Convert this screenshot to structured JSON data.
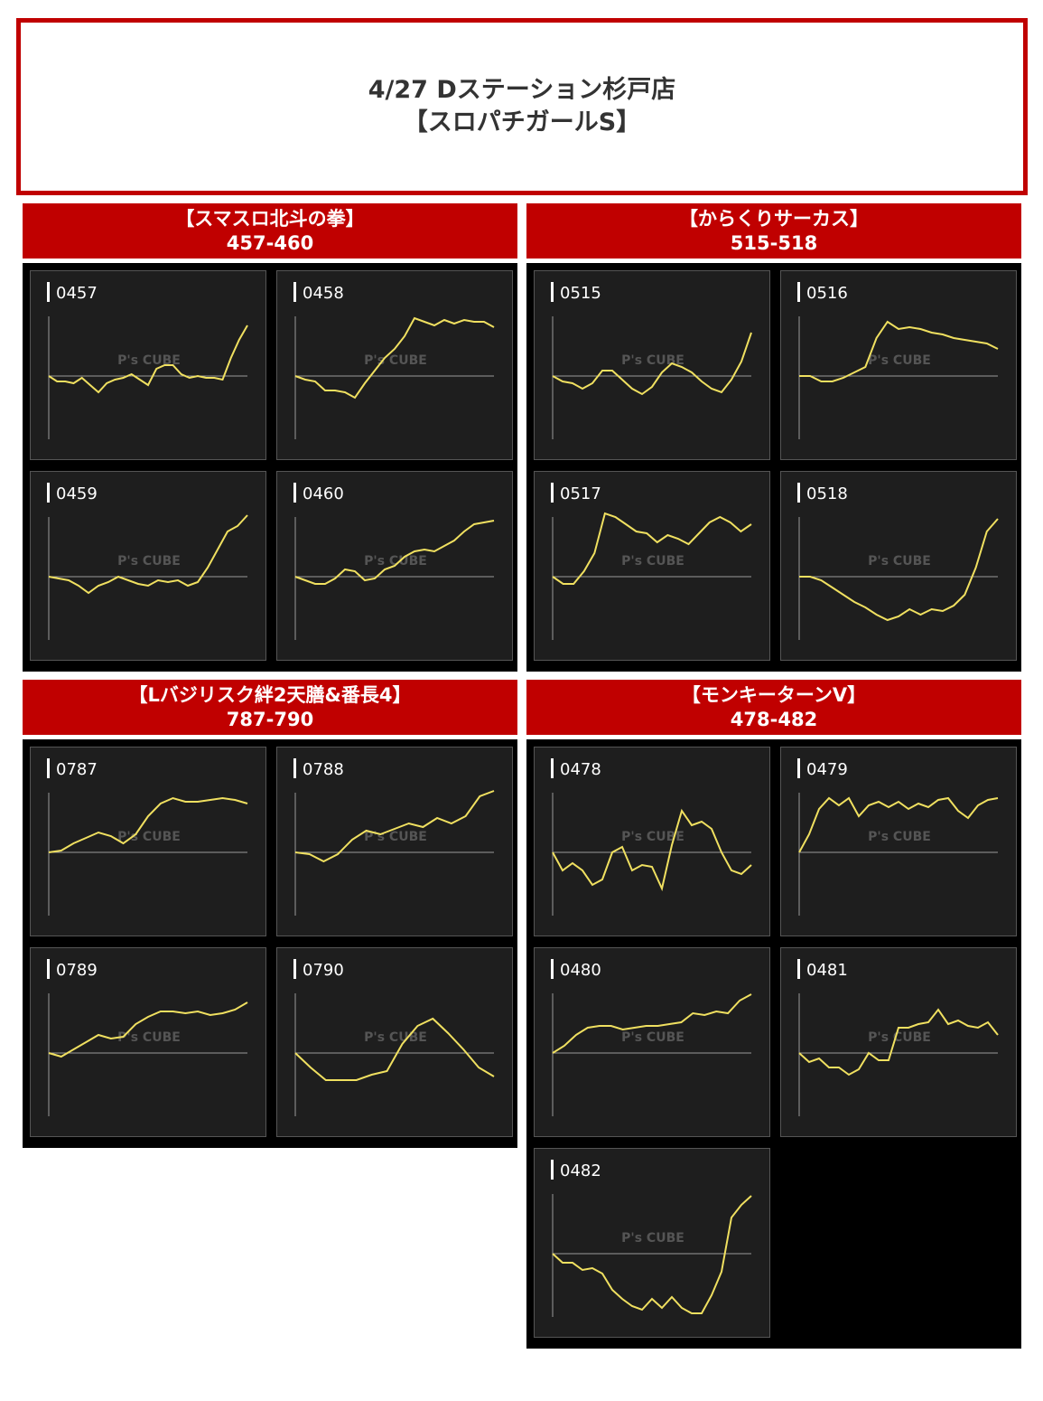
{
  "header": {
    "date_store": "4/27 Dステーション杉戸店",
    "event": "【スロパチガールS】"
  },
  "watermark": "P's CUBE",
  "groups": [
    {
      "title": "【スマスロ北斗の拳】",
      "range": "457-460",
      "machines": [
        {
          "id": "0457",
          "values": [
            0,
            -6,
            -6,
            -8,
            -2,
            -10,
            -18,
            -8,
            -4,
            -2,
            2,
            -4,
            -10,
            8,
            12,
            12,
            2,
            -2,
            0,
            -2,
            -2,
            -4,
            20,
            40,
            56
          ]
        },
        {
          "id": "0458",
          "values": [
            0,
            -4,
            -6,
            -16,
            -16,
            -18,
            -24,
            -8,
            6,
            20,
            30,
            44,
            64,
            60,
            56,
            62,
            58,
            62,
            60,
            60,
            54
          ]
        },
        {
          "id": "0459",
          "values": [
            0,
            -2,
            -4,
            -10,
            -18,
            -10,
            -6,
            0,
            -4,
            -8,
            -10,
            -4,
            -6,
            -4,
            -10,
            -6,
            10,
            30,
            50,
            56,
            68
          ]
        },
        {
          "id": "0460",
          "values": [
            0,
            -4,
            -8,
            -8,
            -2,
            8,
            6,
            -4,
            -2,
            8,
            12,
            22,
            28,
            30,
            28,
            34,
            40,
            50,
            58,
            60,
            62
          ]
        }
      ]
    },
    {
      "title": "【からくりサーカス】",
      "range": "515-518",
      "machines": [
        {
          "id": "0515",
          "values": [
            0,
            -6,
            -8,
            -14,
            -8,
            6,
            6,
            -4,
            -14,
            -20,
            -12,
            4,
            14,
            10,
            4,
            -6,
            -14,
            -18,
            -4,
            16,
            48
          ]
        },
        {
          "id": "0516",
          "values": [
            0,
            0,
            -6,
            -6,
            -2,
            4,
            10,
            42,
            60,
            52,
            54,
            52,
            48,
            46,
            42,
            40,
            38,
            36,
            30
          ]
        },
        {
          "id": "0517",
          "values": [
            0,
            -8,
            -8,
            6,
            26,
            70,
            66,
            58,
            50,
            48,
            38,
            46,
            42,
            36,
            48,
            60,
            66,
            60,
            50,
            58
          ]
        },
        {
          "id": "0518",
          "values": [
            0,
            0,
            -4,
            -12,
            -20,
            -28,
            -34,
            -42,
            -48,
            -44,
            -36,
            -42,
            -36,
            -38,
            -32,
            -20,
            10,
            50,
            64
          ]
        }
      ]
    },
    {
      "title": "【Lバジリスク絆2天膳&番長4】",
      "range": "787-790",
      "machines": [
        {
          "id": "0787",
          "values": [
            0,
            2,
            10,
            16,
            22,
            18,
            10,
            20,
            40,
            54,
            60,
            56,
            56,
            58,
            60,
            58,
            54
          ]
        },
        {
          "id": "0788",
          "values": [
            0,
            -2,
            -10,
            -2,
            14,
            24,
            20,
            26,
            32,
            28,
            38,
            32,
            40,
            62,
            68
          ]
        },
        {
          "id": "0789",
          "values": [
            0,
            -4,
            4,
            12,
            20,
            16,
            18,
            32,
            40,
            46,
            46,
            44,
            46,
            42,
            44,
            48,
            56
          ]
        },
        {
          "id": "0790",
          "values": [
            0,
            -16,
            -30,
            -30,
            -30,
            -24,
            -20,
            10,
            30,
            38,
            22,
            4,
            -16,
            -26
          ]
        }
      ]
    },
    {
      "title": "【モンキーターンV】",
      "range": "478-482",
      "machines": [
        {
          "id": "0478",
          "values": [
            0,
            -20,
            -12,
            -20,
            -36,
            -30,
            0,
            6,
            -20,
            -14,
            -16,
            -40,
            8,
            46,
            30,
            34,
            26,
            0,
            -20,
            -24,
            -14
          ]
        },
        {
          "id": "0479",
          "values": [
            0,
            20,
            48,
            60,
            52,
            60,
            40,
            52,
            56,
            50,
            56,
            48,
            54,
            50,
            58,
            60,
            46,
            38,
            52,
            58,
            60
          ]
        },
        {
          "id": "0480",
          "values": [
            0,
            8,
            20,
            28,
            30,
            30,
            26,
            28,
            30,
            30,
            32,
            34,
            44,
            42,
            46,
            44,
            58,
            65
          ]
        },
        {
          "id": "0481",
          "values": [
            0,
            -10,
            -6,
            -16,
            -16,
            -24,
            -18,
            0,
            -8,
            -8,
            28,
            28,
            32,
            34,
            48,
            32,
            36,
            30,
            28,
            34,
            20
          ]
        },
        {
          "id": "0482",
          "values": [
            0,
            -10,
            -10,
            -18,
            -16,
            -22,
            -40,
            -50,
            -58,
            -62,
            -50,
            -60,
            -48,
            -60,
            -66,
            -66,
            -46,
            -20,
            40,
            54,
            64
          ]
        }
      ]
    }
  ]
}
